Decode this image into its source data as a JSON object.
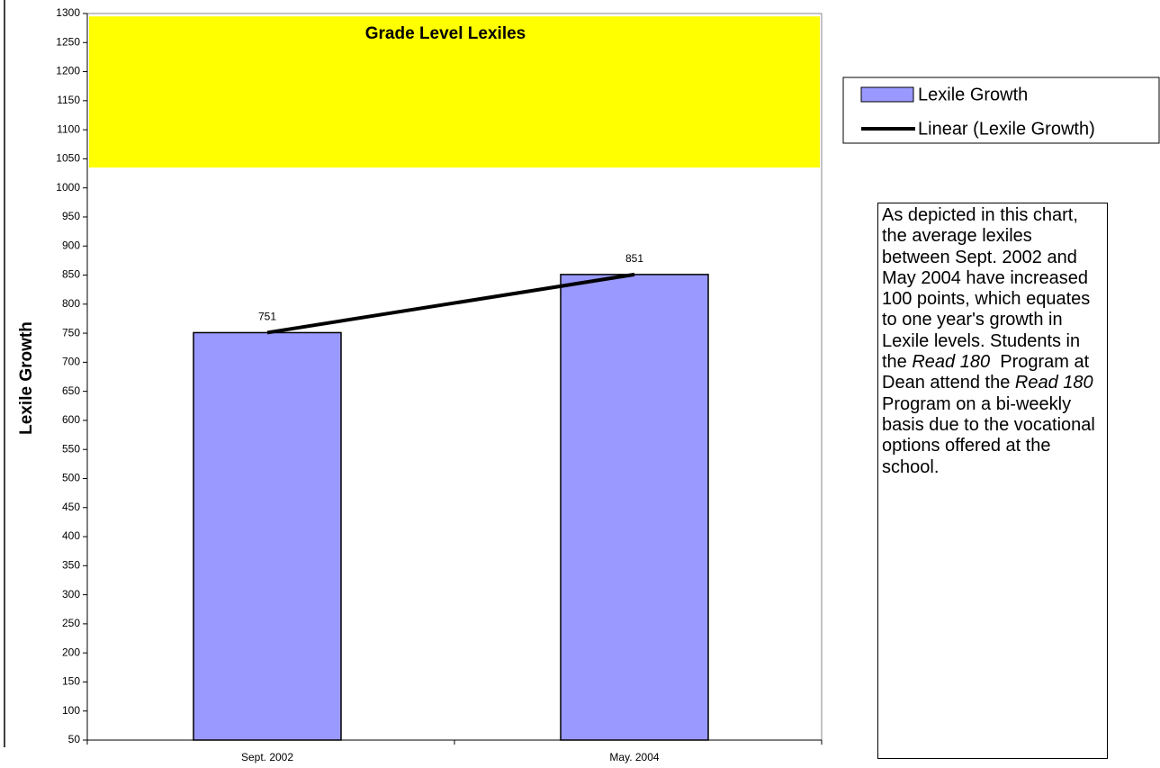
{
  "chart_data": {
    "type": "bar",
    "categories": [
      "Sept. 2002",
      "May. 2004"
    ],
    "series": [
      {
        "name": "Lexile Growth",
        "color": "#9999ff",
        "values": [
          751,
          851
        ]
      }
    ],
    "trendline": {
      "name": "Linear (Lexile Growth)",
      "color": "#000000"
    },
    "band": {
      "label": "Grade Level Lexiles",
      "from": 1035,
      "to": 1295,
      "color": "#ffff00"
    },
    "ylabel": "Lexile Growth",
    "ylim": [
      50,
      1300
    ],
    "yticks": [
      50,
      100,
      150,
      200,
      250,
      300,
      350,
      400,
      450,
      500,
      550,
      600,
      650,
      700,
      750,
      800,
      850,
      900,
      950,
      1000,
      1050,
      1100,
      1150,
      1200,
      1250,
      1300
    ],
    "grid": false,
    "legend": "right",
    "note": [
      {
        "text": "As depicted in this chart, the average lexiles between Sept. 2002 and May 2004 have increased 100 points, which equates to one year's growth in Lexile levels. Students in the ",
        "italic": false
      },
      {
        "text": "Read 180",
        "italic": true
      },
      {
        "text": "  Program at Dean attend the ",
        "italic": false
      },
      {
        "text": "Read 180",
        "italic": true
      },
      {
        "text": "  Program on a bi-weekly basis due to the vocational options offered at the school.",
        "italic": false
      }
    ]
  }
}
